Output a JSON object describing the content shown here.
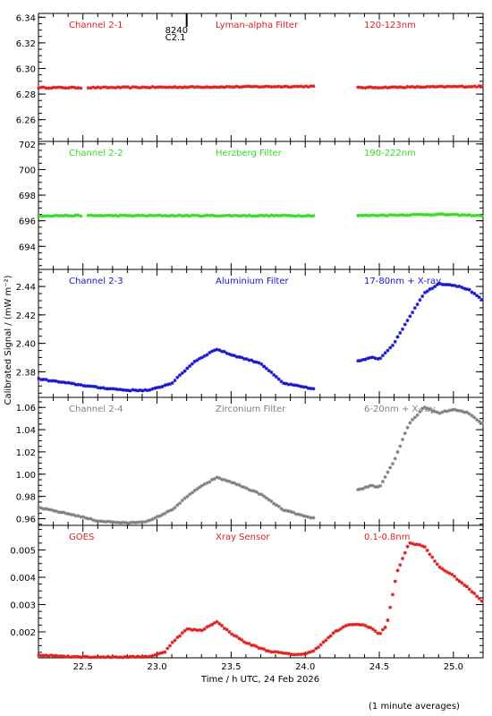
{
  "figure": {
    "ylabel": "Calibrated Signal / (mW m⁻²)",
    "xlabel": "Time / h UTC, 24 Feb 2026",
    "footnote": "(1 minute averages)",
    "event_marker": {
      "x": 23.2,
      "labels": [
        "8240",
        "C2.1"
      ]
    }
  },
  "chart_data": [
    {
      "type": "scatter",
      "labels": [
        "Channel 2-1",
        "Lyman-alpha Filter",
        "120-123nm"
      ],
      "color": "#dd2020",
      "xlim": [
        22.2,
        25.2
      ],
      "ylim": [
        6.243,
        6.343
      ],
      "yticks": [
        "6.26",
        "6.28",
        "6.30",
        "6.32",
        "6.34"
      ],
      "yticks_values": [
        6.26,
        6.28,
        6.3,
        6.32,
        6.34
      ],
      "series": [
        {
          "x": [
            22.2,
            22.5,
            22.52,
            24.07,
            24.34,
            25.2
          ],
          "y": [
            6.285,
            6.285,
            6.285,
            6.286,
            6.285,
            6.286
          ],
          "gaps": [
            [
              22.5,
              22.52
            ],
            [
              24.07,
              24.34
            ]
          ]
        }
      ]
    },
    {
      "type": "scatter",
      "labels": [
        "Channel 2-2",
        "Herzberg Filter",
        "190-222nm"
      ],
      "color": "#33dd22",
      "xlim": [
        22.2,
        25.2
      ],
      "ylim": [
        692.2,
        702.2
      ],
      "yticks": [
        "694",
        "696",
        "698",
        "700",
        "702"
      ],
      "yticks_values": [
        694,
        696,
        698,
        700,
        702
      ],
      "series": [
        {
          "x": [
            22.2,
            22.5,
            22.52,
            24.07,
            24.34,
            24.9,
            25.2
          ],
          "y": [
            696.4,
            696.4,
            696.4,
            696.4,
            696.4,
            696.5,
            696.4
          ],
          "gaps": [
            [
              22.5,
              22.52
            ],
            [
              24.07,
              24.34
            ]
          ]
        }
      ]
    },
    {
      "type": "scatter",
      "labels": [
        "Channel 2-3",
        "Aluminium Filter",
        "17-80nm + X-ray"
      ],
      "color": "#1515cc",
      "xlim": [
        22.2,
        25.2
      ],
      "ylim": [
        2.362,
        2.452
      ],
      "yticks": [
        "2.38",
        "2.40",
        "2.42",
        "2.44"
      ],
      "yticks_values": [
        2.38,
        2.4,
        2.42,
        2.44
      ],
      "series": [
        {
          "x": [
            22.2,
            22.4,
            22.6,
            22.8,
            22.95,
            23.1,
            23.25,
            23.4,
            23.5,
            23.7,
            23.85,
            24.05,
            24.34,
            24.45,
            24.5,
            24.6,
            24.7,
            24.8,
            24.9,
            25.0,
            25.1,
            25.2
          ],
          "y": [
            2.375,
            2.372,
            2.369,
            2.367,
            2.367,
            2.372,
            2.387,
            2.396,
            2.392,
            2.386,
            2.372,
            2.368,
            2.387,
            2.39,
            2.389,
            2.4,
            2.418,
            2.435,
            2.442,
            2.441,
            2.438,
            2.43
          ],
          "gaps": [
            [
              24.07,
              24.34
            ]
          ]
        }
      ]
    },
    {
      "type": "scatter",
      "labels": [
        "Channel 2-4",
        "Zirconium Filter",
        "6-20nm + X-ray"
      ],
      "color": "#808080",
      "xlim": [
        22.2,
        25.2
      ],
      "ylim": [
        0.954,
        1.069
      ],
      "yticks": [
        "0.96",
        "0.98",
        "1.00",
        "1.02",
        "1.04",
        "1.06"
      ],
      "yticks_values": [
        0.96,
        0.98,
        1.0,
        1.02,
        1.04,
        1.06
      ],
      "series": [
        {
          "x": [
            22.2,
            22.45,
            22.6,
            22.8,
            22.95,
            23.1,
            23.25,
            23.4,
            23.5,
            23.7,
            23.85,
            24.05,
            24.34,
            24.45,
            24.5,
            24.6,
            24.7,
            24.8,
            24.9,
            25.0,
            25.1,
            25.2
          ],
          "y": [
            0.97,
            0.963,
            0.958,
            0.956,
            0.958,
            0.968,
            0.985,
            0.997,
            0.993,
            0.982,
            0.968,
            0.96,
            0.985,
            0.99,
            0.988,
            1.012,
            1.045,
            1.06,
            1.055,
            1.058,
            1.055,
            1.045
          ],
          "gaps": [
            [
              24.07,
              24.34
            ]
          ]
        }
      ]
    },
    {
      "type": "scatter",
      "labels": [
        "GOES",
        "Xray Sensor",
        "0.1-0.8nm"
      ],
      "color": "#dd2020",
      "xlim": [
        22.2,
        25.2
      ],
      "ylim": [
        0.00105,
        0.0059
      ],
      "yticks": [
        "0.002",
        "0.003",
        "0.004",
        "0.005"
      ],
      "yticks_values": [
        0.002,
        0.003,
        0.004,
        0.005
      ],
      "xticks": [
        "22.5",
        "23.0",
        "23.5",
        "24.0",
        "24.5",
        "25.0"
      ],
      "xticks_values": [
        22.5,
        23.0,
        23.5,
        24.0,
        24.5,
        25.0
      ],
      "series": [
        {
          "x": [
            22.2,
            22.4,
            22.6,
            22.8,
            22.95,
            23.05,
            23.1,
            23.2,
            23.3,
            23.4,
            23.5,
            23.6,
            23.75,
            23.9,
            24.0,
            24.05,
            24.1,
            24.2,
            24.3,
            24.4,
            24.45,
            24.5,
            24.55,
            24.62,
            24.7,
            24.8,
            24.9,
            25.0,
            25.1,
            25.2
          ],
          "y": [
            0.00115,
            0.0011,
            0.00108,
            0.00108,
            0.0011,
            0.00125,
            0.0016,
            0.0021,
            0.00205,
            0.00238,
            0.00195,
            0.0016,
            0.0013,
            0.00118,
            0.00118,
            0.0013,
            0.0015,
            0.002,
            0.00228,
            0.00225,
            0.00213,
            0.0019,
            0.00225,
            0.0042,
            0.00525,
            0.00515,
            0.0044,
            0.00405,
            0.0036,
            0.0031
          ]
        }
      ]
    }
  ]
}
